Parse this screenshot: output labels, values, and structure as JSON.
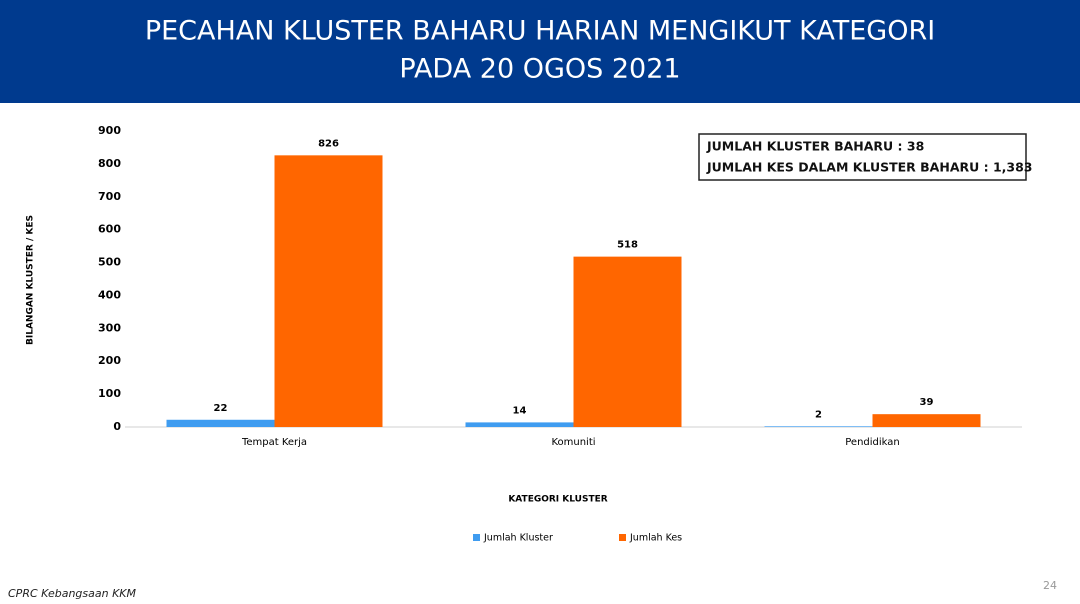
{
  "chart_data": {
    "type": "bar",
    "title": [
      "PECAHAN KLUSTER BAHARU HARIAN MENGIKUT KATEGORI",
      "PADA 20 OGOS 2021"
    ],
    "x_label": "KATEGORI KLUSTER",
    "y_label": "BILANGAN KLUSTER / KES",
    "categories": [
      "Tempat Kerja",
      "Komuniti",
      "Pendidikan"
    ],
    "series": [
      {
        "name": "Jumlah Kluster",
        "color": "#3f9cf0",
        "values": [
          22,
          14,
          2
        ]
      },
      {
        "name": "Jumlah Kes",
        "color": "#ff6600",
        "values": [
          826,
          518,
          39
        ]
      }
    ],
    "ylim": [
      0,
      900
    ],
    "yticks": [
      0,
      100,
      200,
      300,
      400,
      500,
      600,
      700,
      800,
      900
    ],
    "annotations": [
      "JUMLAH KLUSTER BAHARU : 38",
      "JUMLAH KES DALAM KLUSTER BAHARU : 1,383"
    ],
    "legend": "bottom"
  },
  "footer": {
    "source": "CPRC Kebangsaan KKM",
    "page_number": 24
  }
}
